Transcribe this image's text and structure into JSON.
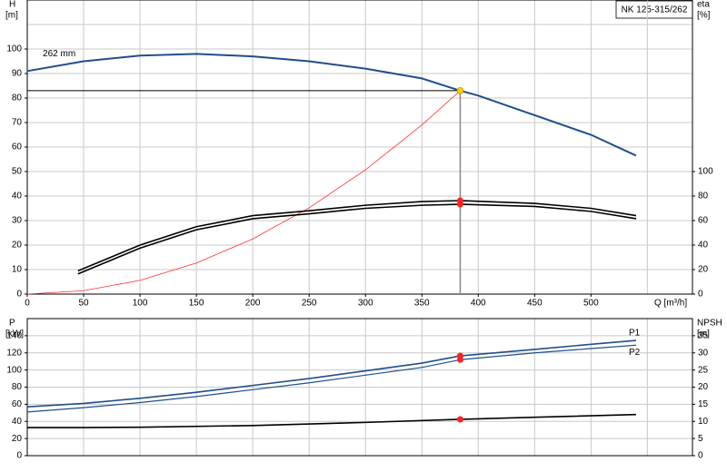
{
  "title": "NK 125-315/262",
  "chart_data": [
    {
      "type": "line",
      "ylabel": "H",
      "yunit": "[m]",
      "y2label": "eta",
      "y2unit": "[%]",
      "xlabel": "Q [m³/h]",
      "xlim": [
        0,
        590
      ],
      "xticks": [
        0,
        50,
        100,
        150,
        200,
        250,
        300,
        350,
        400,
        450,
        500
      ],
      "xgrid": [
        0,
        50,
        100,
        150,
        200,
        250,
        300,
        350,
        400,
        450,
        500,
        550
      ],
      "ylim": [
        0,
        120
      ],
      "yticks": [
        0,
        10,
        20,
        30,
        40,
        50,
        60,
        70,
        80,
        90,
        100
      ],
      "ygrid": [
        0,
        10,
        20,
        30,
        40,
        50,
        60,
        70,
        80,
        90,
        100,
        110
      ],
      "y2lim": [
        0,
        240
      ],
      "y2ticks": [
        0,
        20,
        40,
        60,
        80,
        100
      ],
      "duty": {
        "x": 384,
        "y": 83,
        "color": "#ffcc00"
      },
      "series": [
        {
          "name": "262 mm",
          "color": "#1f4e8c",
          "width": 2,
          "x": [
            0,
            50,
            100,
            150,
            200,
            250,
            300,
            350,
            384,
            400,
            450,
            500,
            540
          ],
          "values": [
            91,
            95,
            97.3,
            98,
            97,
            95,
            92,
            88,
            83,
            81,
            73,
            65,
            56.5
          ]
        },
        {
          "color": "#ff3030",
          "width": 0.8,
          "x": [
            0,
            50,
            100,
            150,
            200,
            250,
            300,
            350,
            384
          ],
          "values": [
            0,
            1.4,
            5.6,
            12.7,
            22.5,
            35.2,
            50.7,
            69,
            83
          ]
        },
        {
          "color": "#000000",
          "width": 1.6,
          "axis": "y2",
          "dot": "#ff2020",
          "x": [
            45,
            100,
            150,
            200,
            250,
            300,
            350,
            384,
            450,
            500,
            540
          ],
          "values": [
            19,
            40,
            55,
            64,
            68,
            72.5,
            75.5,
            76.3,
            74,
            70,
            64
          ]
        },
        {
          "color": "#000000",
          "width": 1.6,
          "axis": "y2",
          "dot": "#ff2020",
          "x": [
            45,
            100,
            150,
            200,
            250,
            300,
            350,
            384,
            450,
            500,
            540
          ],
          "values": [
            16.5,
            37.5,
            52.5,
            61.5,
            65.5,
            70,
            72.5,
            73.3,
            71.5,
            67.5,
            61.5
          ]
        }
      ]
    },
    {
      "type": "line",
      "ylabel": "P",
      "yunit": "[kW]",
      "y2label": "NPSH",
      "y2unit": "[m]",
      "xlim": [
        0,
        590
      ],
      "xgrid": [
        0,
        50,
        100,
        150,
        200,
        250,
        300,
        350,
        400,
        450,
        500,
        550
      ],
      "ylim": [
        0,
        160
      ],
      "yticks": [
        0,
        20,
        40,
        60,
        80,
        100,
        120,
        140
      ],
      "ygrid": [
        0,
        20,
        40,
        60,
        80,
        100,
        120,
        140
      ],
      "y2lim": [
        0,
        40
      ],
      "y2ticks": [
        0,
        5,
        10,
        15,
        20,
        25,
        30,
        35
      ],
      "series": [
        {
          "name": "P1",
          "color": "#1f4e8c",
          "width": 1.6,
          "dot": "#ff2020",
          "x": [
            0,
            50,
            100,
            150,
            200,
            250,
            300,
            350,
            384,
            450,
            500,
            540
          ],
          "values": [
            57,
            61,
            67,
            74,
            82,
            90,
            99,
            108,
            116.5,
            124,
            130,
            134.5
          ]
        },
        {
          "name": "P2",
          "color": "#1f4e8c",
          "width": 1.2,
          "dot": "#ff2020",
          "x": [
            0,
            50,
            100,
            150,
            200,
            250,
            300,
            350,
            384,
            450,
            500,
            540
          ],
          "values": [
            51,
            56,
            62,
            69,
            77,
            85,
            94,
            103,
            112,
            120,
            125,
            129
          ]
        },
        {
          "color": "#000000",
          "width": 1.6,
          "axis": "y2",
          "dot": "#ff2020",
          "x": [
            0,
            50,
            100,
            200,
            300,
            384,
            450,
            540
          ],
          "values": [
            8.2,
            8.2,
            8.3,
            8.8,
            9.7,
            10.6,
            11.2,
            12
          ]
        }
      ]
    }
  ]
}
